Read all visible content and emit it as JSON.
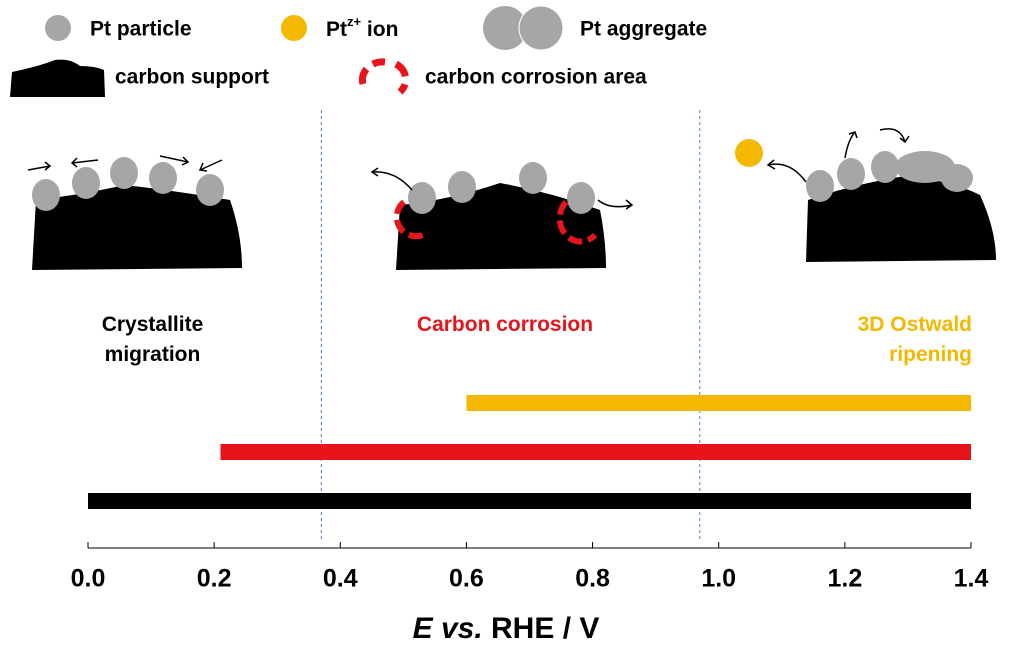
{
  "chart_data": {
    "type": "range",
    "legend": {
      "particle": "Pt particle",
      "ion": "Pt",
      "ion_sup": "z+",
      "ion_suffix": " ion",
      "aggregate": "Pt aggregate",
      "support": "carbon support",
      "corrosion": "carbon corrosion area"
    },
    "series": [
      {
        "name": "3D Ostwald ripening",
        "color": "#f5b800",
        "start": 0.6,
        "end": 1.4
      },
      {
        "name": "Carbon corrosion",
        "color": "#e8141c",
        "start": 0.21,
        "end": 1.4
      },
      {
        "name": "Crystallite migration",
        "color": "#000000",
        "start": 0,
        "end": 1.4
      }
    ],
    "dividers": [
      0.37,
      0.97
    ],
    "xlim": [
      0,
      1.4
    ],
    "xticks": [
      {
        "value": 0,
        "label": "0.0"
      },
      0.2,
      0.4,
      0.6,
      0.8,
      {
        "value": 1,
        "label": "1.0"
      },
      1.2,
      1.4
    ],
    "x_label_italic": "E vs.",
    "x_label": "RHE / V"
  }
}
